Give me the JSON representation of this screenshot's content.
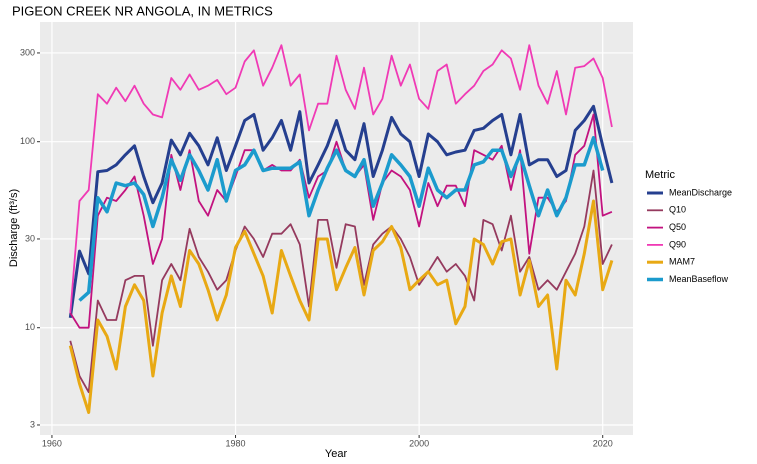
{
  "chart_data": {
    "type": "line",
    "title": "PIGEON CREEK NR ANGOLA, IN  METRICS",
    "x_label": "Year",
    "y_label": "Discharge (ft³/s)",
    "legend_title": "Metric",
    "legend_position": "right",
    "log_y": true,
    "grid": true,
    "xlim": [
      1958.7,
      2023.3
    ],
    "xticks": [
      1960,
      1980,
      2000,
      2020
    ],
    "ylim": [
      2.65,
      440
    ],
    "yticks": [
      3,
      10,
      30,
      100,
      300
    ],
    "x": [
      1962,
      1963,
      1964,
      1965,
      1966,
      1967,
      1968,
      1969,
      1970,
      1971,
      1972,
      1973,
      1974,
      1975,
      1976,
      1977,
      1978,
      1979,
      1980,
      1981,
      1982,
      1983,
      1984,
      1985,
      1986,
      1987,
      1988,
      1989,
      1990,
      1991,
      1992,
      1993,
      1994,
      1995,
      1996,
      1997,
      1998,
      1999,
      2000,
      2001,
      2002,
      2003,
      2004,
      2005,
      2006,
      2007,
      2008,
      2009,
      2010,
      2011,
      2012,
      2013,
      2014,
      2015,
      2016,
      2017,
      2018,
      2019,
      2020,
      2021
    ],
    "series": [
      {
        "name": "MeanDischarge",
        "color": "#253f8f",
        "width": 3,
        "values": [
          11.3,
          25.8,
          19.5,
          69,
          70,
          75,
          85,
          95,
          65,
          47,
          60,
          102,
          85,
          111,
          95,
          75,
          105,
          70,
          95,
          130,
          140,
          90,
          105,
          130,
          90,
          145,
          60,
          75,
          95,
          130,
          90,
          80,
          125,
          65,
          90,
          135,
          110,
          100,
          65,
          110,
          100,
          85,
          88,
          90,
          115,
          118,
          130,
          140,
          85,
          140,
          75,
          80,
          80,
          65,
          70,
          115,
          130,
          155,
          95,
          60
        ]
      },
      {
        "name": "Q10",
        "color": "#953a5e",
        "width": 1.8,
        "values": [
          8.5,
          5.5,
          4.5,
          14,
          11,
          11,
          18,
          19,
          19,
          8,
          18,
          22,
          18,
          34,
          24,
          20,
          16,
          18,
          26,
          35,
          30,
          24,
          32,
          32,
          36,
          28,
          13,
          38,
          38,
          21,
          36,
          35,
          17,
          28,
          32,
          35,
          30,
          24,
          17,
          20,
          24,
          20,
          22,
          19,
          14,
          38,
          36,
          26,
          40,
          20,
          24,
          16,
          18,
          16,
          20,
          25,
          35,
          70,
          22,
          28
        ]
      },
      {
        "name": "Q50",
        "color": "#c2127f",
        "width": 1.8,
        "values": [
          12,
          10,
          10,
          40,
          50,
          48,
          55,
          65,
          40,
          22,
          30,
          85,
          55,
          90,
          48,
          40,
          55,
          48,
          65,
          90,
          90,
          70,
          75,
          70,
          70,
          80,
          50,
          65,
          70,
          100,
          70,
          65,
          75,
          38,
          60,
          70,
          65,
          55,
          35,
          60,
          45,
          58,
          58,
          45,
          90,
          85,
          80,
          95,
          55,
          90,
          25,
          50,
          50,
          42,
          48,
          85,
          95,
          140,
          40,
          42
        ]
      },
      {
        "name": "Q90",
        "color": "#f03ab5",
        "width": 1.8,
        "values": [
          12,
          48,
          55,
          180,
          160,
          195,
          165,
          200,
          160,
          140,
          135,
          220,
          190,
          230,
          190,
          200,
          215,
          180,
          195,
          270,
          310,
          200,
          250,
          330,
          200,
          230,
          115,
          160,
          160,
          290,
          190,
          150,
          250,
          140,
          170,
          290,
          200,
          260,
          170,
          150,
          240,
          260,
          160,
          180,
          200,
          240,
          260,
          310,
          280,
          190,
          330,
          200,
          160,
          240,
          140,
          250,
          255,
          280,
          220,
          120
        ]
      },
      {
        "name": "MAM7",
        "color": "#e8a914",
        "width": 3,
        "values": [
          8,
          5,
          3.5,
          11,
          9,
          6,
          13,
          17,
          14,
          5.5,
          12,
          19,
          13,
          26,
          22,
          16,
          11,
          15,
          27,
          33,
          25,
          19,
          12,
          26,
          19,
          14,
          11,
          30,
          30,
          16,
          21,
          27,
          15,
          26,
          29,
          35,
          27,
          16,
          18,
          20,
          17,
          18,
          10.5,
          13,
          30,
          28,
          22,
          29,
          30,
          15,
          23,
          13,
          15,
          6,
          18,
          15,
          25,
          48,
          16,
          23
        ]
      },
      {
        "name": "MeanBaseflow",
        "color": "#1b9bcd",
        "width": 3.5,
        "values": [
          null,
          14,
          15.5,
          50,
          42,
          60,
          58,
          60,
          52,
          35,
          50,
          80,
          62,
          85,
          70,
          55,
          80,
          48,
          70,
          75,
          90,
          70,
          72,
          72,
          72,
          78,
          40,
          55,
          72,
          90,
          70,
          65,
          80,
          45,
          60,
          85,
          75,
          65,
          45,
          72,
          55,
          50,
          55,
          55,
          75,
          78,
          90,
          90,
          65,
          85,
          58,
          40,
          55,
          40,
          50,
          75,
          75,
          105,
          70,
          null
        ]
      }
    ]
  }
}
